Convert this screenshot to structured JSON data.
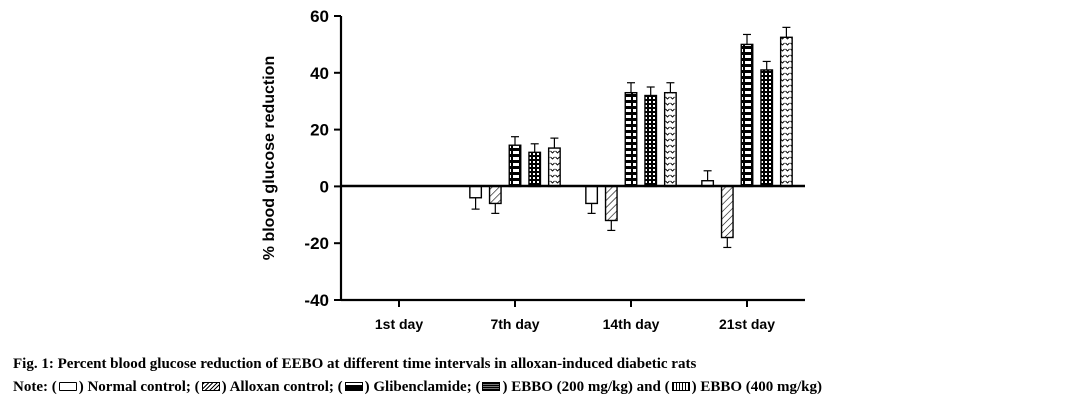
{
  "chart_data": {
    "type": "bar",
    "ylabel": "% blood glucose reduction",
    "xlabel": "",
    "ylim": [
      -40,
      60
    ],
    "yticks": [
      60,
      40,
      20,
      0,
      -20,
      -40
    ],
    "categories": [
      "1st day",
      "7th day",
      "14th day",
      "21st day"
    ],
    "series": [
      {
        "name": "Normal control",
        "values": [
          0,
          -4,
          -6,
          2
        ],
        "errors": [
          0,
          4,
          3.5,
          3.5
        ]
      },
      {
        "name": "Alloxan control",
        "values": [
          0,
          -6,
          -12,
          -18
        ],
        "errors": [
          0,
          3.5,
          3.5,
          3.5
        ]
      },
      {
        "name": "Glibenclamide",
        "values": [
          0,
          14.5,
          33,
          50
        ],
        "errors": [
          0,
          3,
          3.5,
          3.5
        ]
      },
      {
        "name": "EBBO (200 mg/kg)",
        "values": [
          0,
          12,
          32,
          41
        ],
        "errors": [
          0,
          3,
          3,
          3
        ]
      },
      {
        "name": "EBBO (400 mg/kg)",
        "values": [
          0,
          13.5,
          33,
          52.5
        ],
        "errors": [
          0,
          3.5,
          3.5,
          3.5
        ]
      }
    ]
  },
  "caption": {
    "title": "Fig. 1: Percent blood glucose reduction of EEBO at different time intervals in alloxan-induced diabetic rats",
    "note_prefix": "Note: (",
    "legend": [
      {
        "label": ") Normal control; ("
      },
      {
        "label": ") Alloxan control; ("
      },
      {
        "label": ") Glibenclamide; ("
      },
      {
        "label": ") EBBO (200 mg/kg) and ("
      },
      {
        "label": ") EBBO (400 mg/kg)"
      }
    ]
  }
}
